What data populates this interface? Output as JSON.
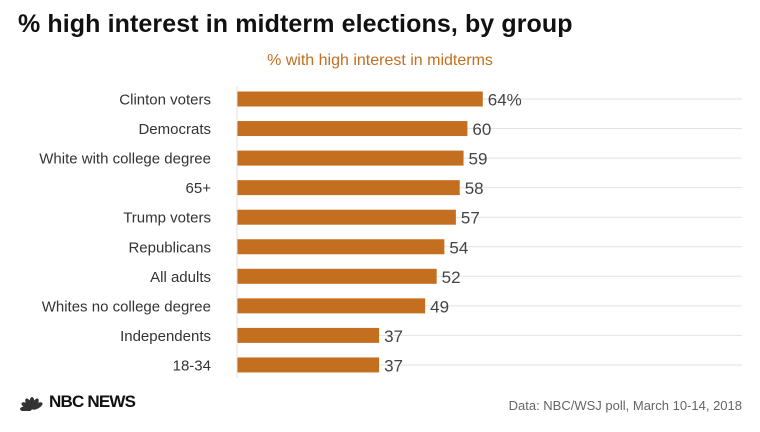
{
  "header": {
    "title": "% high interest in midterm elections, by group"
  },
  "chart_data": {
    "type": "bar",
    "orientation": "horizontal",
    "title": "% high interest in midterm elections, by group",
    "subtitle": "% with high interest in midterms",
    "categories": [
      "Clinton voters",
      "Democrats",
      "White with college degree",
      "65+",
      "Trump voters",
      "Republicans",
      "All adults",
      "Whites no college degree",
      "Independents",
      "18-34"
    ],
    "values": [
      64,
      60,
      59,
      58,
      57,
      54,
      52,
      49,
      37,
      37
    ],
    "value_labels": [
      "64%",
      "60",
      "59",
      "58",
      "57",
      "54",
      "52",
      "49",
      "37",
      "37"
    ],
    "xlim": [
      0,
      100
    ],
    "grid": true,
    "bar_color": "#c46f1f"
  },
  "footer": {
    "logo_text": "NBC NEWS",
    "source": "Data: NBC/WSJ poll, March 10-14, 2018"
  },
  "colors": {
    "accent": "#c46f1f",
    "gridline": "#e2e2e2"
  }
}
